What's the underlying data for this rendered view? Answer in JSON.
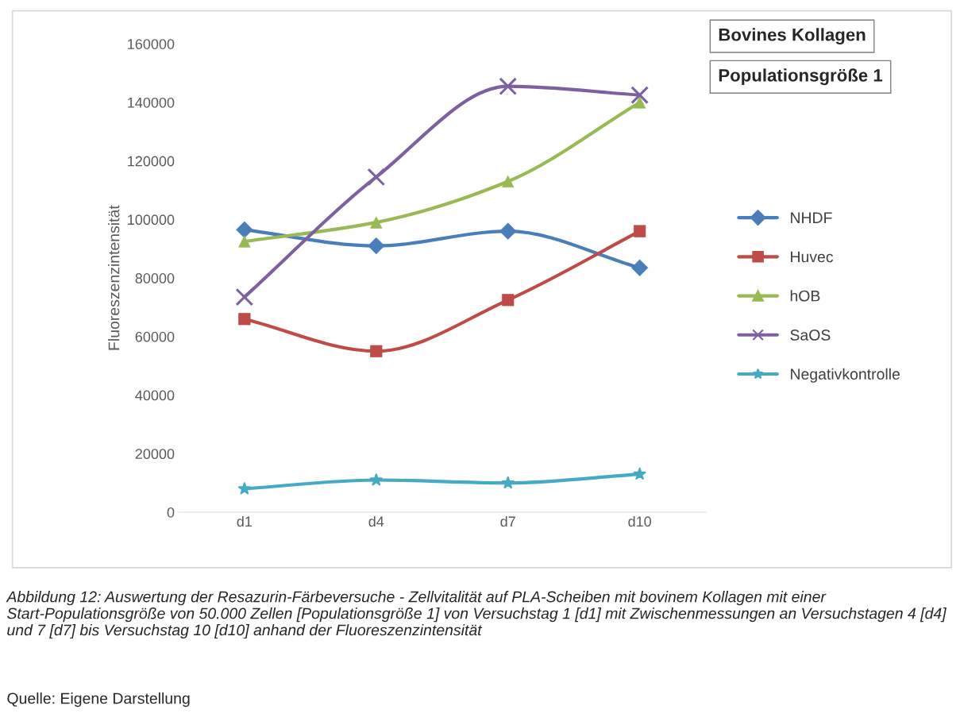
{
  "chart_data": {
    "type": "line",
    "title": "Bovines Kollagen",
    "subtitle": "Populationsgröße 1",
    "ylabel": "Fluoreszenzintensität",
    "categories": [
      "d1",
      "d4",
      "d7",
      "d10"
    ],
    "series": [
      {
        "name": "NHDF",
        "color": "#4a7ebb",
        "marker": "diamond",
        "values": [
          96500,
          91000,
          96000,
          83500
        ]
      },
      {
        "name": "Huvec",
        "color": "#be4b48",
        "marker": "square",
        "values": [
          66000,
          55000,
          72500,
          96000
        ]
      },
      {
        "name": "hOB",
        "color": "#98b954",
        "marker": "triangle",
        "values": [
          92500,
          99000,
          113000,
          140000
        ]
      },
      {
        "name": "SaOS",
        "color": "#7d60a0",
        "marker": "cross",
        "values": [
          73500,
          114500,
          145500,
          142500
        ]
      },
      {
        "name": "Negativkontrolle",
        "color": "#46aac5",
        "marker": "star",
        "values": [
          8000,
          11000,
          10000,
          13000
        ]
      }
    ],
    "ylim": [
      0,
      160000
    ],
    "yticks": [
      0,
      20000,
      40000,
      60000,
      80000,
      100000,
      120000,
      140000,
      160000
    ],
    "grid": false,
    "legend": "right",
    "line_style": "solid",
    "annotations": [
      "Abbildung 12: Auswertung der Resazurin-Färbeversuche - Zellvitalität auf PLA-Scheiben mit bovinem Kollagen mit einer Start-Populationsgröße von 50.000 Zellen [Populationsgröße 1] von Versuchstag 1 [d1] mit Zwischenmessungen an Versuchstagen 4 [d4] und 7 [d7] bis Versuchstag 10 [d10] anhand der Fluoreszenzintensität",
      "Quelle: Eigene Darstellung"
    ]
  }
}
